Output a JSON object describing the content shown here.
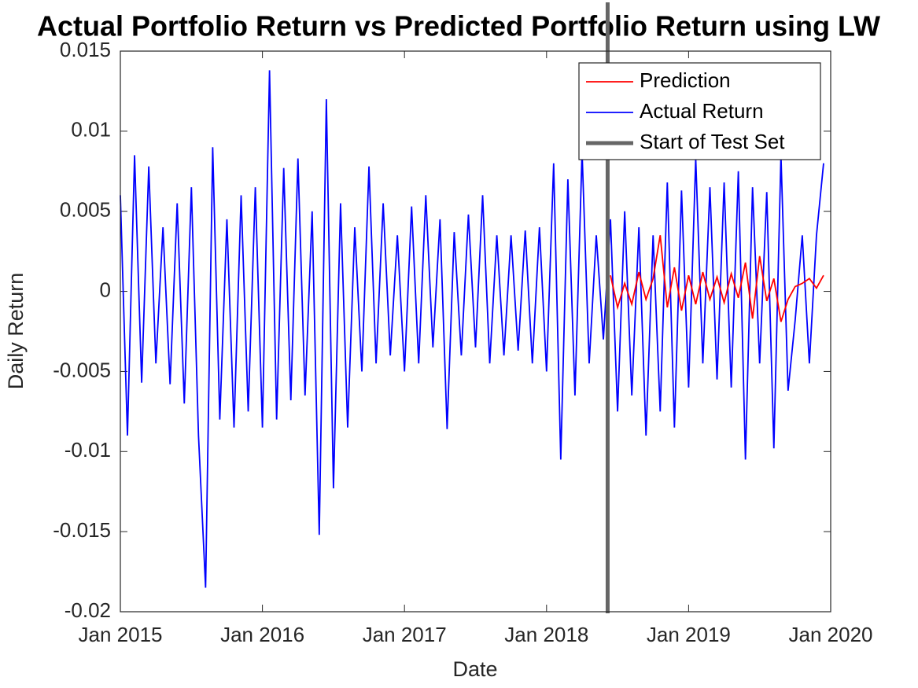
{
  "chart_data": {
    "type": "line",
    "title": "Actual Portfolio Return vs Predicted Portfolio Return using LW",
    "xlabel": "Date",
    "ylabel": "Daily Return",
    "xlim": [
      2015,
      2020
    ],
    "xticks": [
      {
        "value": 2015,
        "label": "Jan 2015"
      },
      {
        "value": 2016,
        "label": "Jan 2016"
      },
      {
        "value": 2017,
        "label": "Jan 2017"
      },
      {
        "value": 2018,
        "label": "Jan 2018"
      },
      {
        "value": 2019,
        "label": "Jan 2019"
      },
      {
        "value": 2020,
        "label": "Jan 2020"
      }
    ],
    "ylim": [
      -0.02,
      0.015
    ],
    "yticks": [
      -0.02,
      -0.015,
      -0.01,
      -0.005,
      0,
      0.005,
      0.01,
      0.015
    ],
    "grid": false,
    "legend": "northeast",
    "series": [
      {
        "name": "Prediction",
        "color": "#ff0000",
        "x": [
          2018.45,
          2018.5,
          2018.55,
          2018.6,
          2018.65,
          2018.7,
          2018.75,
          2018.8,
          2018.85,
          2018.9,
          2018.95,
          2019.0,
          2019.05,
          2019.1,
          2019.15,
          2019.2,
          2019.25,
          2019.3,
          2019.35,
          2019.4,
          2019.45,
          2019.5,
          2019.55,
          2019.6,
          2019.65,
          2019.7,
          2019.75,
          2019.8,
          2019.85,
          2019.9,
          2019.95
        ],
        "values": [
          0.001,
          -0.001,
          0.0005,
          -0.0008,
          0.0012,
          -0.0005,
          0.0008,
          0.0035,
          -0.001,
          0.0015,
          -0.0012,
          0.001,
          -0.0008,
          0.0012,
          -0.0005,
          0.0009,
          -0.0007,
          0.0011,
          -0.0004,
          0.0018,
          -0.0017,
          0.0022,
          -0.0006,
          0.0008,
          -0.0019,
          -0.0005,
          0.0003,
          0.0005,
          0.0008,
          0.0002,
          0.001
        ]
      },
      {
        "name": "Actual Return",
        "color": "#0000ff",
        "x": [
          2015.0,
          2015.05,
          2015.1,
          2015.15,
          2015.2,
          2015.25,
          2015.3,
          2015.35,
          2015.4,
          2015.45,
          2015.5,
          2015.55,
          2015.6,
          2015.65,
          2015.7,
          2015.75,
          2015.8,
          2015.85,
          2015.9,
          2015.95,
          2016.0,
          2016.05,
          2016.1,
          2016.15,
          2016.2,
          2016.25,
          2016.3,
          2016.35,
          2016.4,
          2016.45,
          2016.5,
          2016.55,
          2016.6,
          2016.65,
          2016.7,
          2016.75,
          2016.8,
          2016.85,
          2016.9,
          2016.95,
          2017.0,
          2017.05,
          2017.1,
          2017.15,
          2017.2,
          2017.25,
          2017.3,
          2017.35,
          2017.4,
          2017.45,
          2017.5,
          2017.55,
          2017.6,
          2017.65,
          2017.7,
          2017.75,
          2017.8,
          2017.85,
          2017.9,
          2017.95,
          2018.0,
          2018.05,
          2018.1,
          2018.15,
          2018.2,
          2018.25,
          2018.3,
          2018.35,
          2018.4,
          2018.45,
          2018.5,
          2018.55,
          2018.6,
          2018.65,
          2018.7,
          2018.75,
          2018.8,
          2018.85,
          2018.9,
          2018.95,
          2019.0,
          2019.05,
          2019.1,
          2019.15,
          2019.2,
          2019.25,
          2019.3,
          2019.35,
          2019.4,
          2019.45,
          2019.5,
          2019.55,
          2019.6,
          2019.65,
          2019.7,
          2019.75,
          2019.8,
          2019.85,
          2019.9,
          2019.95
        ],
        "values": [
          0.006,
          -0.009,
          0.0085,
          -0.0057,
          0.0078,
          -0.0045,
          0.004,
          -0.0058,
          0.0055,
          -0.007,
          0.0065,
          -0.009,
          -0.0185,
          0.009,
          -0.008,
          0.0045,
          -0.0085,
          0.006,
          -0.0075,
          0.0065,
          -0.0085,
          0.0138,
          -0.008,
          0.0077,
          -0.0068,
          0.0083,
          -0.0065,
          0.005,
          -0.0152,
          0.012,
          -0.0123,
          0.0055,
          -0.0085,
          0.004,
          -0.005,
          0.0078,
          -0.0045,
          0.0055,
          -0.004,
          0.0035,
          -0.005,
          0.0053,
          -0.0045,
          0.006,
          -0.0035,
          0.0045,
          -0.0086,
          0.0037,
          -0.004,
          0.0048,
          -0.0035,
          0.006,
          -0.0045,
          0.0035,
          -0.004,
          0.0035,
          -0.0037,
          0.0038,
          -0.0045,
          0.004,
          -0.005,
          0.008,
          -0.0105,
          0.007,
          -0.0065,
          0.0087,
          -0.0045,
          0.0035,
          -0.003,
          0.0045,
          -0.0075,
          0.005,
          -0.0065,
          0.004,
          -0.009,
          0.0035,
          -0.0075,
          0.0068,
          -0.0085,
          0.0063,
          -0.006,
          0.0083,
          -0.0045,
          0.0065,
          -0.0055,
          0.0068,
          -0.006,
          0.0075,
          -0.0105,
          0.0065,
          -0.0045,
          0.0062,
          -0.0098,
          0.0085,
          -0.0062,
          -0.0018,
          0.0035,
          -0.0045,
          0.0035,
          0.008
        ]
      }
    ],
    "reference_line": {
      "name": "Start of Test Set",
      "x": 2018.43,
      "color": "#666666"
    }
  }
}
